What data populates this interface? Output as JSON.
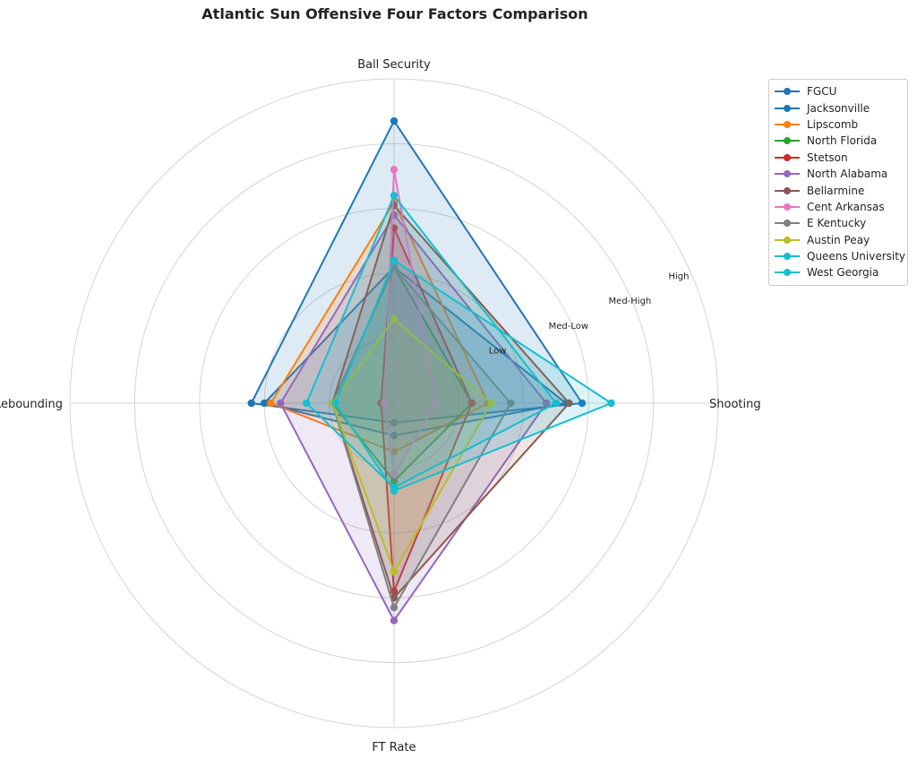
{
  "chart_data": {
    "type": "radar",
    "title": "Atlantic Sun Offensive Four Factors Comparison",
    "axes": [
      "Ball Security",
      "Shooting",
      "FT Rate",
      "Off Rebounding"
    ],
    "ring_labels": [
      "Low",
      "Med-Low",
      "Med-High",
      "High"
    ],
    "rlim": [
      0,
      5
    ],
    "grid": true,
    "legend_position": "right",
    "series": [
      {
        "name": "FGCU",
        "color": "#1f77b4",
        "values": [
          4.35,
          2.9,
          0.3,
          2.2
        ]
      },
      {
        "name": "Jacksonville",
        "color": "#1f77b4",
        "values": [
          2.1,
          2.65,
          0.5,
          2.0
        ]
      },
      {
        "name": "Lipscomb",
        "color": "#ff7f0e",
        "values": [
          3.1,
          1.45,
          0.75,
          1.9
        ]
      },
      {
        "name": "North Florida",
        "color": "#2ca02c",
        "values": [
          2.1,
          1.2,
          1.2,
          0.95
        ]
      },
      {
        "name": "Stetson",
        "color": "#d62728",
        "values": [
          2.7,
          1.2,
          2.9,
          0.2
        ]
      },
      {
        "name": "North Alabama",
        "color": "#9467bd",
        "values": [
          2.9,
          2.35,
          3.35,
          1.75
        ]
      },
      {
        "name": "Bellarmine",
        "color": "#8c564b",
        "values": [
          3.05,
          2.7,
          3.0,
          0.95
        ]
      },
      {
        "name": "Cent Arkansas",
        "color": "#e377c2",
        "values": [
          3.6,
          0.65,
          1.1,
          0.15
        ]
      },
      {
        "name": "E Kentucky",
        "color": "#7f7f7f",
        "values": [
          2.1,
          1.8,
          3.15,
          0.95
        ]
      },
      {
        "name": "Austin Peay",
        "color": "#bcbd22",
        "values": [
          1.3,
          1.5,
          2.6,
          0.95
        ]
      },
      {
        "name": "Queens University",
        "color": "#17becf",
        "values": [
          3.2,
          2.5,
          1.3,
          1.35
        ]
      },
      {
        "name": "West Georgia",
        "color": "#17becf",
        "values": [
          2.2,
          3.35,
          1.35,
          0.9
        ]
      }
    ]
  }
}
